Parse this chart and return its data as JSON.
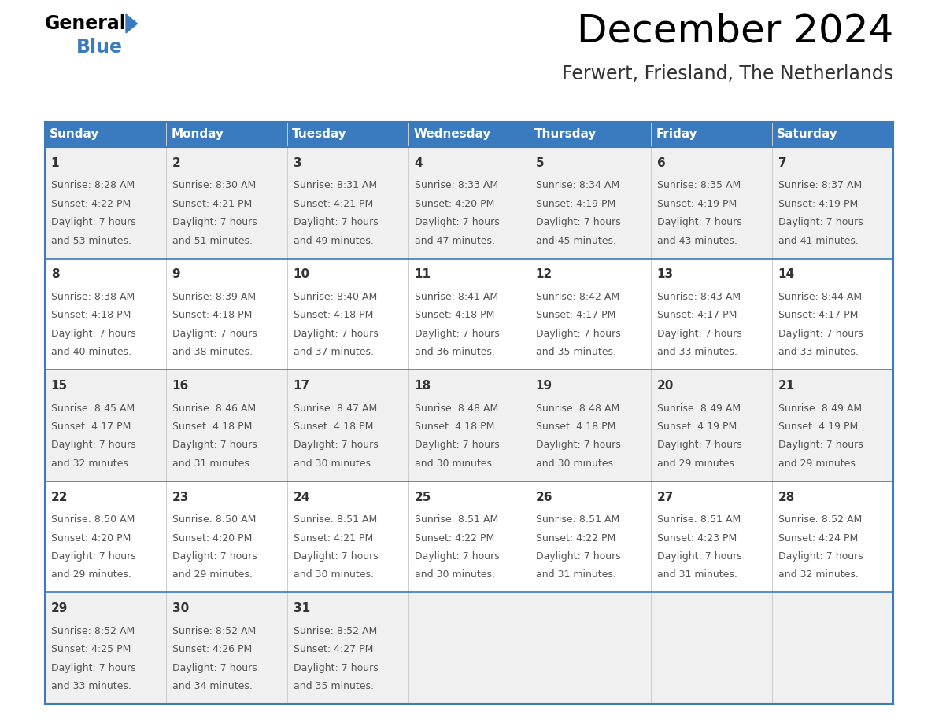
{
  "title": "December 2024",
  "subtitle": "Ferwert, Friesland, The Netherlands",
  "days_of_week": [
    "Sunday",
    "Monday",
    "Tuesday",
    "Wednesday",
    "Thursday",
    "Friday",
    "Saturday"
  ],
  "header_bg": "#3a7abf",
  "header_text": "#ffffff",
  "row_bg_odd": "#f0f0f0",
  "row_bg_even": "#ffffff",
  "border_color": "#3a7abf",
  "separator_color": "#3a7abf",
  "text_color": "#555555",
  "day_num_color": "#333333",
  "calendar": [
    [
      {
        "day": 1,
        "sunrise": "8:28 AM",
        "sunset": "4:22 PM",
        "daylight": "7 hours and 53 minutes."
      },
      {
        "day": 2,
        "sunrise": "8:30 AM",
        "sunset": "4:21 PM",
        "daylight": "7 hours and 51 minutes."
      },
      {
        "day": 3,
        "sunrise": "8:31 AM",
        "sunset": "4:21 PM",
        "daylight": "7 hours and 49 minutes."
      },
      {
        "day": 4,
        "sunrise": "8:33 AM",
        "sunset": "4:20 PM",
        "daylight": "7 hours and 47 minutes."
      },
      {
        "day": 5,
        "sunrise": "8:34 AM",
        "sunset": "4:19 PM",
        "daylight": "7 hours and 45 minutes."
      },
      {
        "day": 6,
        "sunrise": "8:35 AM",
        "sunset": "4:19 PM",
        "daylight": "7 hours and 43 minutes."
      },
      {
        "day": 7,
        "sunrise": "8:37 AM",
        "sunset": "4:19 PM",
        "daylight": "7 hours and 41 minutes."
      }
    ],
    [
      {
        "day": 8,
        "sunrise": "8:38 AM",
        "sunset": "4:18 PM",
        "daylight": "7 hours and 40 minutes."
      },
      {
        "day": 9,
        "sunrise": "8:39 AM",
        "sunset": "4:18 PM",
        "daylight": "7 hours and 38 minutes."
      },
      {
        "day": 10,
        "sunrise": "8:40 AM",
        "sunset": "4:18 PM",
        "daylight": "7 hours and 37 minutes."
      },
      {
        "day": 11,
        "sunrise": "8:41 AM",
        "sunset": "4:18 PM",
        "daylight": "7 hours and 36 minutes."
      },
      {
        "day": 12,
        "sunrise": "8:42 AM",
        "sunset": "4:17 PM",
        "daylight": "7 hours and 35 minutes."
      },
      {
        "day": 13,
        "sunrise": "8:43 AM",
        "sunset": "4:17 PM",
        "daylight": "7 hours and 33 minutes."
      },
      {
        "day": 14,
        "sunrise": "8:44 AM",
        "sunset": "4:17 PM",
        "daylight": "7 hours and 33 minutes."
      }
    ],
    [
      {
        "day": 15,
        "sunrise": "8:45 AM",
        "sunset": "4:17 PM",
        "daylight": "7 hours and 32 minutes."
      },
      {
        "day": 16,
        "sunrise": "8:46 AM",
        "sunset": "4:18 PM",
        "daylight": "7 hours and 31 minutes."
      },
      {
        "day": 17,
        "sunrise": "8:47 AM",
        "sunset": "4:18 PM",
        "daylight": "7 hours and 30 minutes."
      },
      {
        "day": 18,
        "sunrise": "8:48 AM",
        "sunset": "4:18 PM",
        "daylight": "7 hours and 30 minutes."
      },
      {
        "day": 19,
        "sunrise": "8:48 AM",
        "sunset": "4:18 PM",
        "daylight": "7 hours and 30 minutes."
      },
      {
        "day": 20,
        "sunrise": "8:49 AM",
        "sunset": "4:19 PM",
        "daylight": "7 hours and 29 minutes."
      },
      {
        "day": 21,
        "sunrise": "8:49 AM",
        "sunset": "4:19 PM",
        "daylight": "7 hours and 29 minutes."
      }
    ],
    [
      {
        "day": 22,
        "sunrise": "8:50 AM",
        "sunset": "4:20 PM",
        "daylight": "7 hours and 29 minutes."
      },
      {
        "day": 23,
        "sunrise": "8:50 AM",
        "sunset": "4:20 PM",
        "daylight": "7 hours and 29 minutes."
      },
      {
        "day": 24,
        "sunrise": "8:51 AM",
        "sunset": "4:21 PM",
        "daylight": "7 hours and 30 minutes."
      },
      {
        "day": 25,
        "sunrise": "8:51 AM",
        "sunset": "4:22 PM",
        "daylight": "7 hours and 30 minutes."
      },
      {
        "day": 26,
        "sunrise": "8:51 AM",
        "sunset": "4:22 PM",
        "daylight": "7 hours and 31 minutes."
      },
      {
        "day": 27,
        "sunrise": "8:51 AM",
        "sunset": "4:23 PM",
        "daylight": "7 hours and 31 minutes."
      },
      {
        "day": 28,
        "sunrise": "8:52 AM",
        "sunset": "4:24 PM",
        "daylight": "7 hours and 32 minutes."
      }
    ],
    [
      {
        "day": 29,
        "sunrise": "8:52 AM",
        "sunset": "4:25 PM",
        "daylight": "7 hours and 33 minutes."
      },
      {
        "day": 30,
        "sunrise": "8:52 AM",
        "sunset": "4:26 PM",
        "daylight": "7 hours and 34 minutes."
      },
      {
        "day": 31,
        "sunrise": "8:52 AM",
        "sunset": "4:27 PM",
        "daylight": "7 hours and 35 minutes."
      },
      null,
      null,
      null,
      null
    ]
  ],
  "logo_triangle_color": "#3a7abf",
  "title_fontsize": 36,
  "subtitle_fontsize": 17,
  "header_fontsize": 11,
  "day_num_fontsize": 11,
  "cell_text_fontsize": 9
}
